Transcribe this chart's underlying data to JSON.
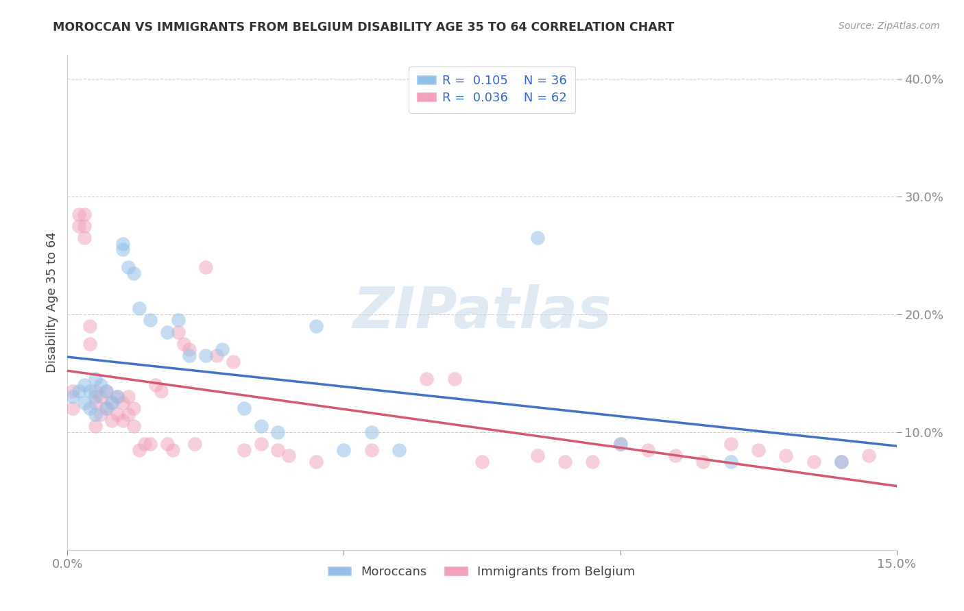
{
  "title": "MOROCCAN VS IMMIGRANTS FROM BELGIUM DISABILITY AGE 35 TO 64 CORRELATION CHART",
  "source": "Source: ZipAtlas.com",
  "ylabel_label": "Disability Age 35 to 64",
  "xlim": [
    0.0,
    0.15
  ],
  "ylim": [
    0.0,
    0.42
  ],
  "blue_color": "#92c0e8",
  "pink_color": "#f0a0b8",
  "blue_line_color": "#4472c4",
  "pink_line_color": "#d45870",
  "watermark": "ZIPatlas",
  "background_color": "#ffffff",
  "grid_color": "#c8c8c8",
  "moroccans_x": [
    0.001,
    0.002,
    0.003,
    0.003,
    0.004,
    0.004,
    0.005,
    0.005,
    0.005,
    0.006,
    0.007,
    0.007,
    0.008,
    0.009,
    0.01,
    0.01,
    0.011,
    0.012,
    0.013,
    0.015,
    0.018,
    0.02,
    0.022,
    0.025,
    0.028,
    0.032,
    0.035,
    0.038,
    0.045,
    0.05,
    0.055,
    0.06,
    0.085,
    0.1,
    0.12,
    0.14
  ],
  "moroccans_y": [
    0.13,
    0.135,
    0.125,
    0.14,
    0.135,
    0.12,
    0.145,
    0.13,
    0.115,
    0.14,
    0.135,
    0.12,
    0.125,
    0.13,
    0.26,
    0.255,
    0.24,
    0.235,
    0.205,
    0.195,
    0.185,
    0.195,
    0.165,
    0.165,
    0.17,
    0.12,
    0.105,
    0.1,
    0.19,
    0.085,
    0.1,
    0.085,
    0.265,
    0.09,
    0.075,
    0.075
  ],
  "belgians_x": [
    0.001,
    0.001,
    0.002,
    0.002,
    0.003,
    0.003,
    0.003,
    0.004,
    0.004,
    0.005,
    0.005,
    0.005,
    0.006,
    0.006,
    0.007,
    0.007,
    0.008,
    0.008,
    0.009,
    0.009,
    0.01,
    0.01,
    0.011,
    0.011,
    0.012,
    0.012,
    0.013,
    0.014,
    0.015,
    0.016,
    0.017,
    0.018,
    0.019,
    0.02,
    0.021,
    0.022,
    0.023,
    0.025,
    0.027,
    0.03,
    0.032,
    0.035,
    0.038,
    0.04,
    0.045,
    0.055,
    0.065,
    0.07,
    0.075,
    0.085,
    0.09,
    0.095,
    0.1,
    0.105,
    0.11,
    0.115,
    0.12,
    0.125,
    0.13,
    0.135,
    0.14,
    0.145
  ],
  "belgians_y": [
    0.135,
    0.12,
    0.285,
    0.275,
    0.285,
    0.275,
    0.265,
    0.19,
    0.175,
    0.135,
    0.125,
    0.105,
    0.13,
    0.115,
    0.135,
    0.12,
    0.125,
    0.11,
    0.13,
    0.115,
    0.125,
    0.11,
    0.13,
    0.115,
    0.12,
    0.105,
    0.085,
    0.09,
    0.09,
    0.14,
    0.135,
    0.09,
    0.085,
    0.185,
    0.175,
    0.17,
    0.09,
    0.24,
    0.165,
    0.16,
    0.085,
    0.09,
    0.085,
    0.08,
    0.075,
    0.085,
    0.145,
    0.145,
    0.075,
    0.08,
    0.075,
    0.075,
    0.09,
    0.085,
    0.08,
    0.075,
    0.09,
    0.085,
    0.08,
    0.075,
    0.075,
    0.08
  ]
}
